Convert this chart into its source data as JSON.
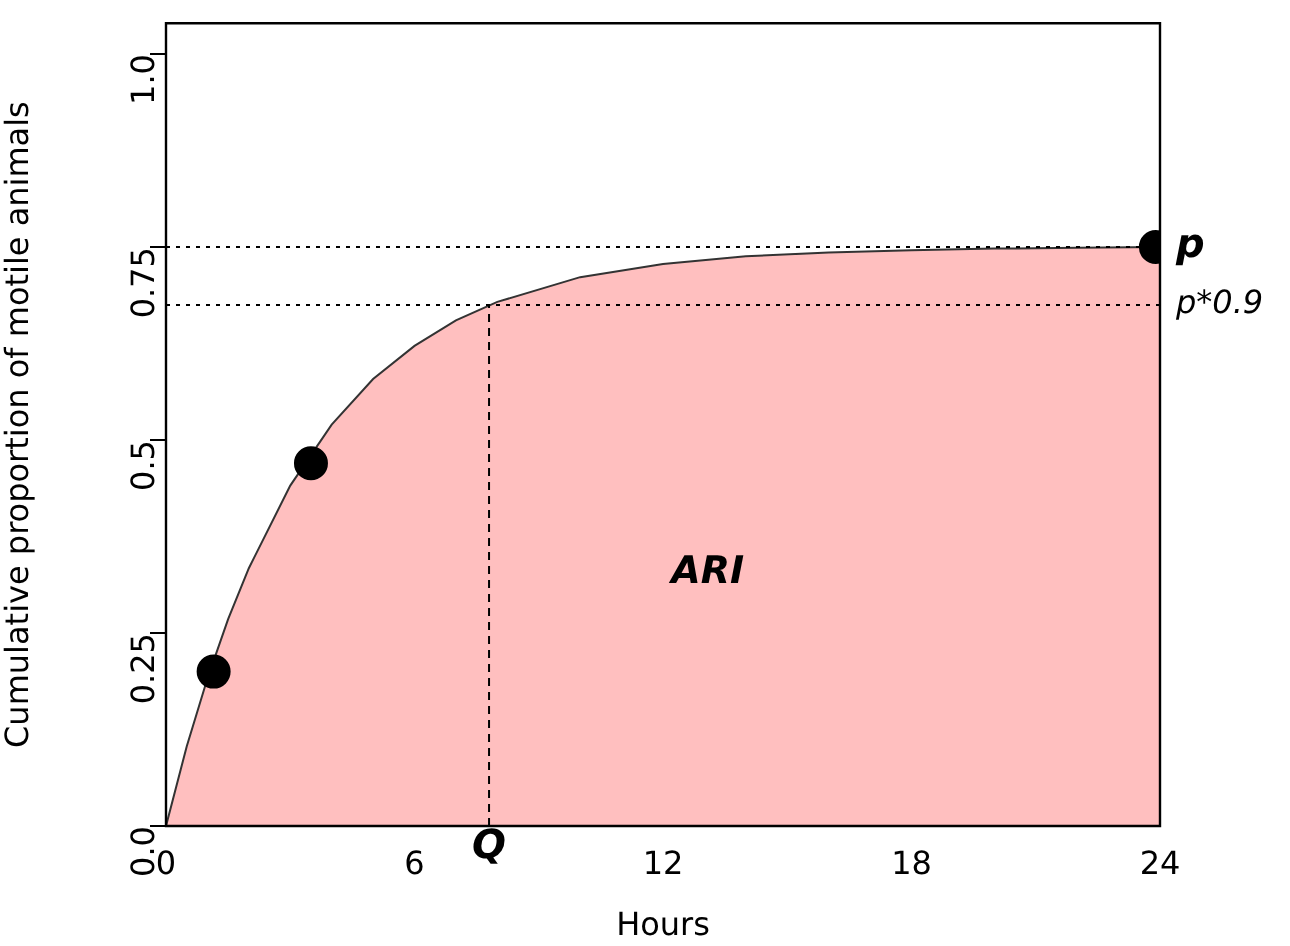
{
  "chart_data": {
    "type": "area",
    "xlabel": "Hours",
    "ylabel": "Cumulative proportion of motile animals",
    "xlim": [
      0,
      24
    ],
    "xticks": [
      0,
      6,
      12,
      18,
      24
    ],
    "ylim": [
      0,
      1.04
    ],
    "yticks": [
      {
        "value": 0,
        "label": "0.0"
      },
      0.25,
      0.5,
      0.75,
      {
        "value": 1,
        "label": "1.0"
      }
    ],
    "grid": false,
    "legend": false,
    "series": [
      {
        "color": "#ffbfbf",
        "marker": "none",
        "x": [
          0,
          0.5,
          1,
          1.5,
          2,
          3,
          4,
          5,
          6,
          7,
          8,
          10,
          12,
          14,
          16,
          18,
          20,
          22,
          24
        ],
        "values": [
          0,
          0.103,
          0.191,
          0.268,
          0.334,
          0.441,
          0.52,
          0.579,
          0.622,
          0.655,
          0.679,
          0.711,
          0.728,
          0.738,
          0.743,
          0.746,
          0.748,
          0.749,
          0.75
        ]
      },
      {
        "type": "scatter",
        "color": "#000000",
        "marker": "circle",
        "x": [
          1.15,
          3.5,
          23.9
        ],
        "values": [
          0.2,
          0.47,
          0.75
        ]
      }
    ],
    "ref_lines": [
      {
        "axis": "y",
        "value": 0.75,
        "label": "p",
        "line_style": "dotted",
        "color": "#000000"
      },
      {
        "axis": "y",
        "value": 0.675,
        "label": "p*0.9",
        "line_style": "dotted",
        "color": "#000000"
      },
      {
        "axis": "x",
        "value": 7.8,
        "label": "Q",
        "line_style": "dashed",
        "color": "#000000"
      }
    ],
    "annotations": [
      "ARI"
    ]
  }
}
